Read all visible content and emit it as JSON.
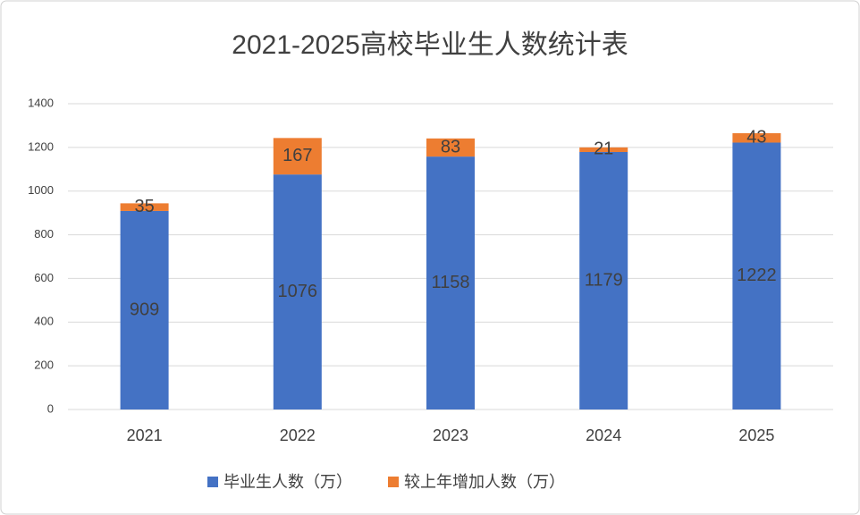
{
  "chart_data": {
    "type": "stacked-bar",
    "title": "2021-2025高校毕业生人数统计表",
    "categories": [
      "2021",
      "2022",
      "2023",
      "2024",
      "2025"
    ],
    "series": [
      {
        "name": "毕业生人数（万）",
        "color": "#4472c4",
        "values": [
          909,
          1076,
          1158,
          1179,
          1222
        ]
      },
      {
        "name": "较上年增加人数（万）",
        "color": "#ed7d31",
        "values": [
          35,
          167,
          83,
          21,
          43
        ]
      }
    ],
    "ylim": [
      0,
      1400
    ],
    "yticks": [
      0,
      200,
      400,
      600,
      800,
      1000,
      1200,
      1400
    ],
    "grid": true,
    "legend": "bottom"
  }
}
